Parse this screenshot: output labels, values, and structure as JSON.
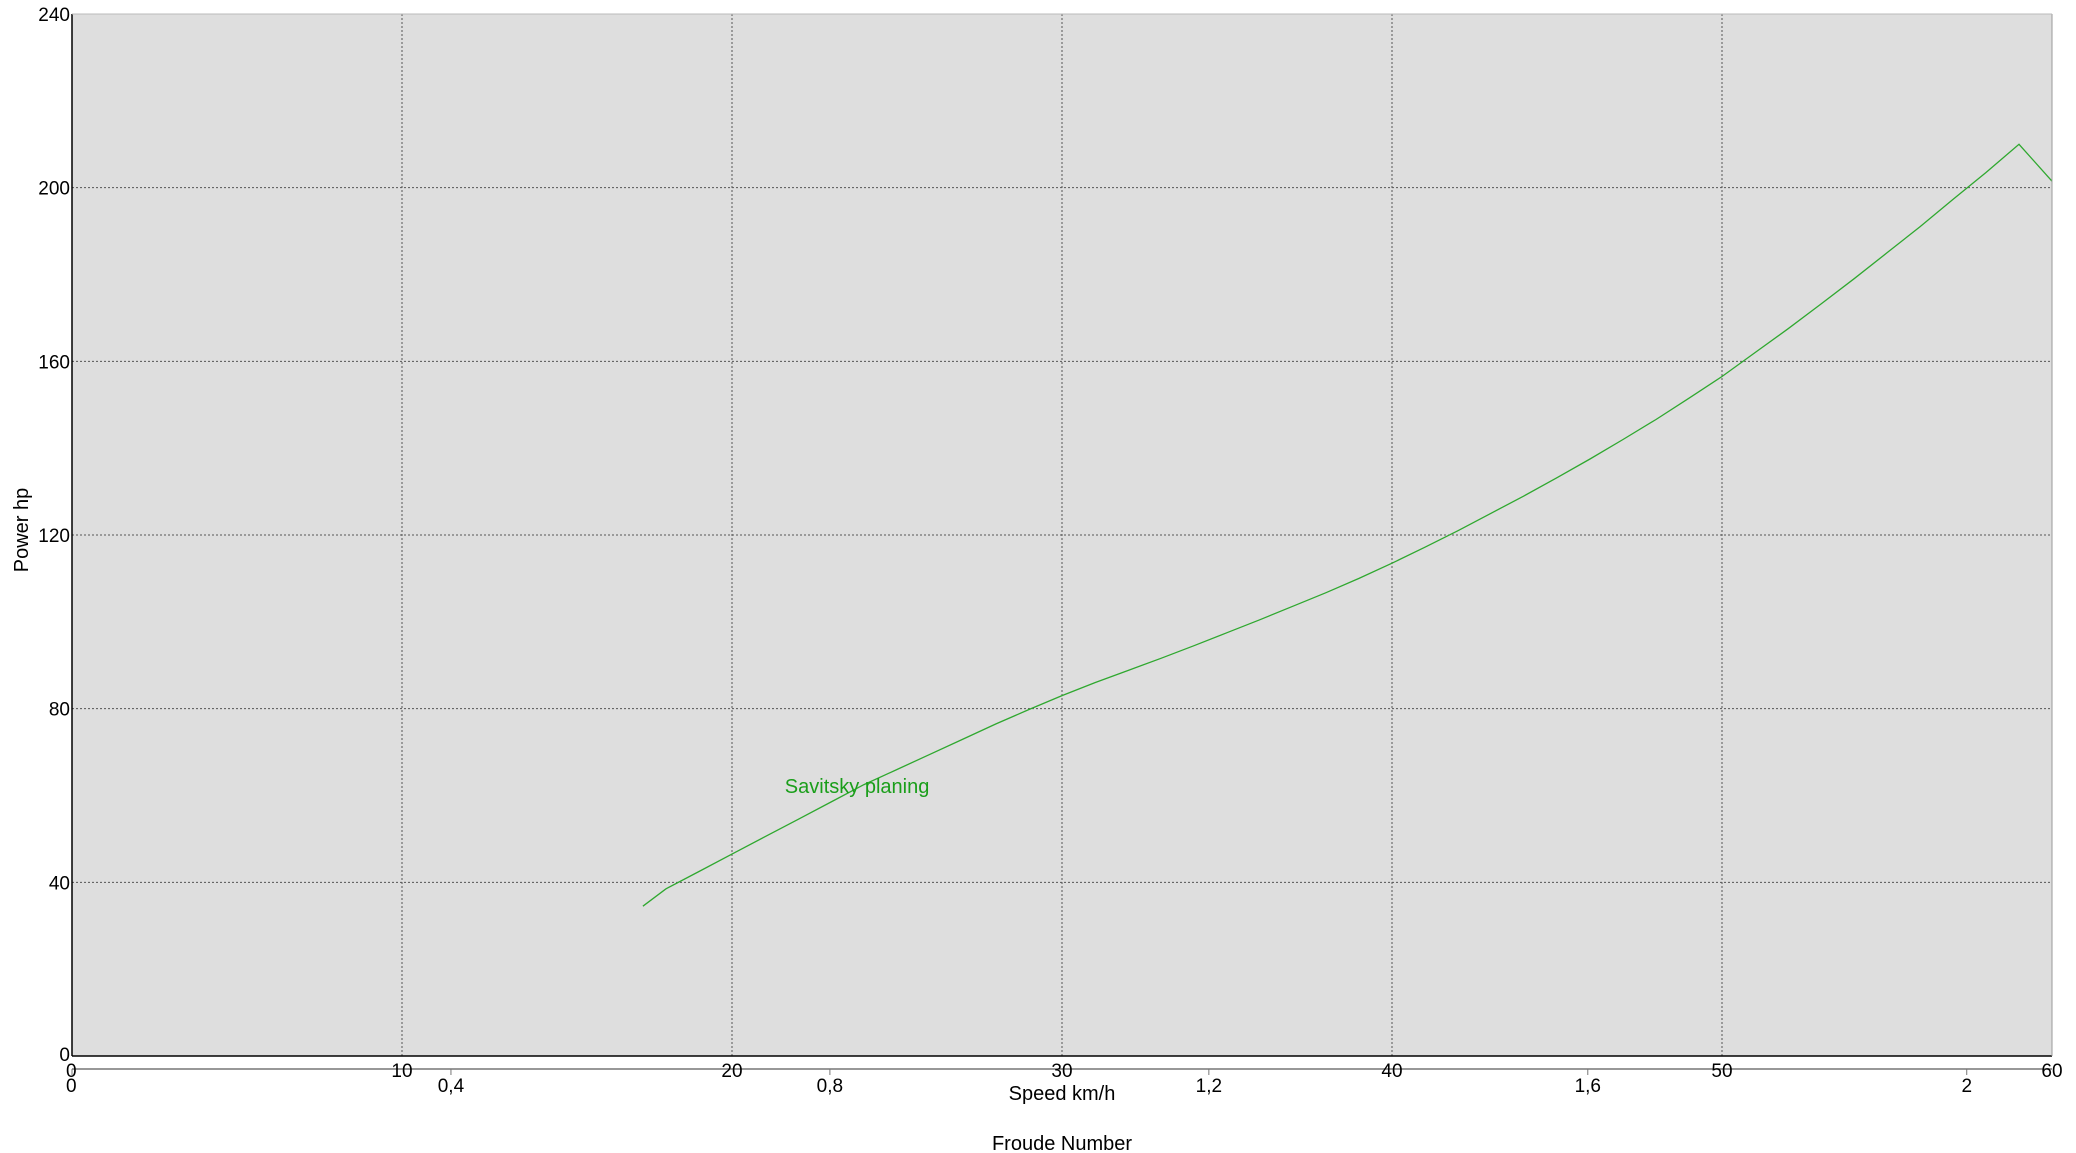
{
  "chart_data": {
    "type": "line",
    "xlabel": "Speed  km/h",
    "ylabel": "Power  hp",
    "x2label": "Froude Number",
    "xlim": [
      0,
      60
    ],
    "ylim": [
      0,
      240
    ],
    "grid": true,
    "x_ticks": [
      "0",
      "10",
      "20",
      "30",
      "40",
      "50",
      "60"
    ],
    "y_ticks": [
      "0",
      "40",
      "80",
      "120",
      "160",
      "200",
      "240"
    ],
    "x2_ticks": [
      "0",
      "0,4",
      "0,8",
      "1,2",
      "1,6",
      "2"
    ],
    "x2_tick_values": [
      0,
      0.4,
      0.8,
      1.2,
      1.6,
      2.0
    ],
    "x2_max": 2.09,
    "series": [
      {
        "name": "Savitsky planing",
        "color": "#2fa82f",
        "label_color": "#1a9e1a",
        "label_at": [
          21.6,
          62
        ],
        "x": [
          17.3,
          18,
          19,
          20,
          21,
          22,
          23,
          24,
          25,
          26,
          27,
          28,
          29,
          30,
          31,
          32,
          33,
          34,
          35,
          36,
          37,
          38,
          39,
          40,
          41,
          42,
          43,
          44,
          45,
          46,
          47,
          48,
          49,
          50,
          51,
          52,
          53,
          54,
          55,
          56,
          57,
          58,
          59,
          60
        ],
        "y": [
          34.5,
          38.5,
          42.5,
          46.5,
          50.5,
          54.5,
          58.5,
          62.5,
          66,
          69.5,
          73,
          76.5,
          79.8,
          83,
          86,
          88.8,
          91.6,
          94.5,
          97.5,
          100.5,
          103.6,
          106.7,
          110,
          113.5,
          117.2,
          121,
          125,
          129,
          133.2,
          137.5,
          142,
          146.6,
          151.5,
          156.5,
          162,
          167.5,
          173.2,
          179,
          185,
          191,
          197.3,
          203.5,
          210,
          201.5
        ]
      }
    ]
  },
  "colors": {
    "plot_background": "#dedede",
    "grid": "#555555",
    "axis": "#000000"
  }
}
